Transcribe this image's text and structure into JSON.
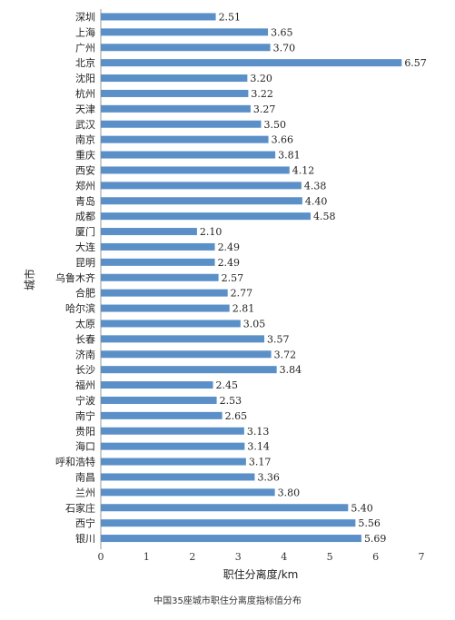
{
  "caption": "中国35座城市职住分离度指标值分布",
  "chart_data": {
    "type": "bar",
    "orientation": "horizontal",
    "title": "",
    "xlabel": "职住分离度/km",
    "ylabel": "城市",
    "xlim": [
      0,
      7
    ],
    "xticks": [
      0,
      1,
      2,
      3,
      4,
      5,
      6,
      7
    ],
    "grid": false,
    "bar_color": "#5b8fc7",
    "categories": [
      "深圳",
      "上海",
      "广州",
      "北京",
      "沈阳",
      "杭州",
      "天津",
      "武汉",
      "南京",
      "重庆",
      "西安",
      "郑州",
      "青岛",
      "成都",
      "厦门",
      "大连",
      "昆明",
      "乌鲁木齐",
      "合肥",
      "哈尔滨",
      "太原",
      "长春",
      "济南",
      "长沙",
      "福州",
      "宁波",
      "南宁",
      "贵阳",
      "海口",
      "呼和浩特",
      "南昌",
      "兰州",
      "石家庄",
      "西宁",
      "银川"
    ],
    "values": [
      2.51,
      3.65,
      3.7,
      6.57,
      3.2,
      3.22,
      3.27,
      3.5,
      3.66,
      3.81,
      4.12,
      4.38,
      4.4,
      4.58,
      2.1,
      2.49,
      2.49,
      2.57,
      2.77,
      2.81,
      3.05,
      3.57,
      3.72,
      3.84,
      2.45,
      2.53,
      2.65,
      3.13,
      3.14,
      3.17,
      3.36,
      3.8,
      5.4,
      5.56,
      5.69
    ],
    "value_labels": [
      "2.51",
      "3.65",
      "3.70",
      "6.57",
      "3.20",
      "3.22",
      "3.27",
      "3.50",
      "3.66",
      "3.81",
      "4.12",
      "4.38",
      "4.40",
      "4.58",
      "2.10",
      "2.49",
      "2.49",
      "2.57",
      "2.77",
      "2.81",
      "3.05",
      "3.57",
      "3.72",
      "3.84",
      "2.45",
      "2.53",
      "2.65",
      "3.13",
      "3.14",
      "3.17",
      "3.36",
      "3.80",
      "5.40",
      "5.56",
      "5.69"
    ]
  }
}
